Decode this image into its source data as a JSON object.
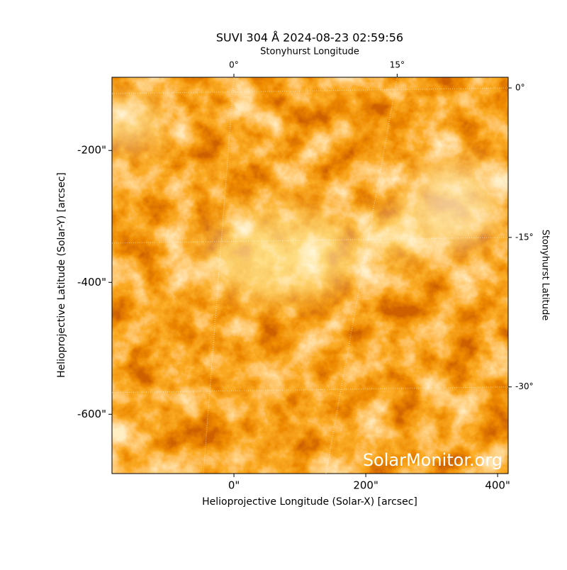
{
  "chart_data": {
    "type": "image",
    "title": "SUVI 304 Å 2024-08-23 02:59:56",
    "xlabel": "Helioprojective Longitude (Solar-X) [arcsec]",
    "ylabel": "Helioprojective Latitude (Solar-Y) [arcsec]",
    "x2label": "Stonyhurst Longitude",
    "y2label": "Stonyhurst Latitude",
    "watermark": "SolarMonitor.org",
    "xlim": [
      -185,
      416
    ],
    "ylim": [
      -89,
      -690
    ],
    "xticks": [
      {
        "value": 0,
        "label": "0\""
      },
      {
        "value": 200,
        "label": "200\""
      },
      {
        "value": 400,
        "label": "400\""
      }
    ],
    "yticks": [
      {
        "value": -200,
        "label": "-200\""
      },
      {
        "value": -400,
        "label": "-400\""
      },
      {
        "value": -600,
        "label": "-600\""
      }
    ],
    "x2lim": [
      -11.2,
      25.2
    ],
    "x2ticks": [
      {
        "value": 0,
        "label": "0°"
      },
      {
        "value": 15,
        "label": "15°"
      }
    ],
    "y2lim": [
      1.07,
      -38.7
    ],
    "y2ticks": [
      {
        "value": 0,
        "label": "0°"
      },
      {
        "value": -15,
        "label": "-15°"
      },
      {
        "value": -30,
        "label": "-30°"
      }
    ],
    "grid": true
  }
}
